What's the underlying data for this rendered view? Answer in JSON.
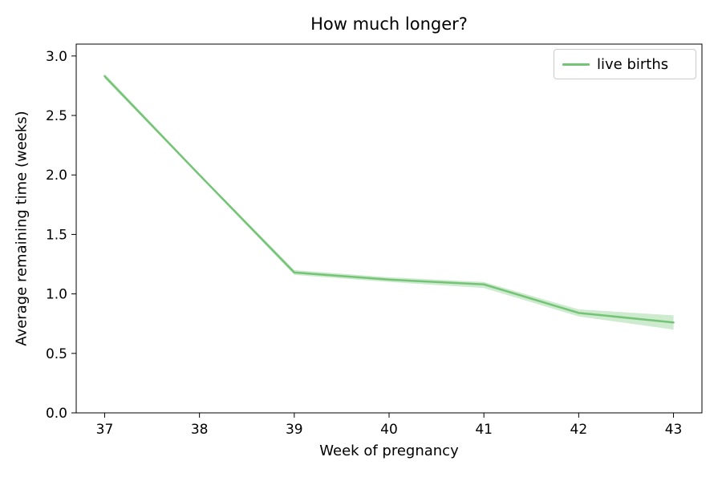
{
  "figure": {
    "background": "#ffffff",
    "axes_color": "#000000",
    "legend_border_color": "#cccccc"
  },
  "chart_data": {
    "type": "line",
    "title": "How much longer?",
    "xlabel": "Week of pregnancy",
    "ylabel": "Average remaining time (weeks)",
    "xlim": [
      36.7,
      43.3
    ],
    "ylim": [
      0,
      3.1
    ],
    "xticks": [
      37,
      38,
      39,
      40,
      41,
      42,
      43
    ],
    "yticks": [
      0.0,
      0.5,
      1.0,
      1.5,
      2.0,
      2.5,
      3.0
    ],
    "grid": false,
    "legend_position": "upper right",
    "series": [
      {
        "name": "live births",
        "color": "#74c476",
        "line_width": 2.5,
        "x": [
          37,
          38,
          39,
          40,
          41,
          42,
          43
        ],
        "y": [
          2.83,
          2.0,
          1.18,
          1.12,
          1.08,
          0.84,
          0.76
        ],
        "band_lower": [
          2.81,
          1.99,
          1.16,
          1.1,
          1.05,
          0.81,
          0.7
        ],
        "band_upper": [
          2.85,
          2.01,
          1.2,
          1.14,
          1.1,
          0.87,
          0.82
        ],
        "band_color": "#74c476",
        "band_opacity": 0.35
      }
    ]
  }
}
